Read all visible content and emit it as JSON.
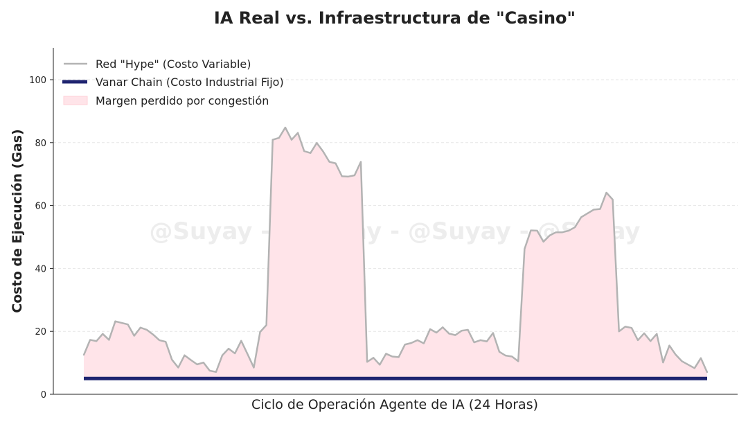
{
  "chart_data": {
    "type": "line",
    "title": "IA Real vs. Infraestructura de \"Casino\"",
    "xlabel": "Ciclo de Operación Agente de IA (24 Horas)",
    "ylabel": "Costo de Ejecución (Gas)",
    "ylim": [
      0,
      110
    ],
    "yticks": [
      0,
      20,
      40,
      60,
      80,
      100
    ],
    "grid": "horizontal-dashed",
    "legend_position": "top-left",
    "watermark": "@Suyay - @Suyay - @Suyay - @Suyay",
    "x": [
      0,
      1,
      2,
      3,
      4,
      5,
      6,
      7,
      8,
      9,
      10,
      11,
      12,
      13,
      14,
      15,
      16,
      17,
      18,
      19,
      20,
      21,
      22,
      23,
      24,
      25,
      26,
      27,
      28,
      29,
      30,
      31,
      32,
      33,
      34,
      35,
      36,
      37,
      38,
      39,
      40,
      41,
      42,
      43,
      44,
      45,
      46,
      47,
      48,
      49,
      50,
      51,
      52,
      53,
      54,
      55,
      56,
      57,
      58,
      59,
      60,
      61,
      62,
      63,
      64,
      65,
      66,
      67,
      68,
      69,
      70,
      71,
      72,
      73,
      74,
      75,
      76,
      77,
      78,
      79,
      80,
      81,
      82,
      83,
      84,
      85,
      86,
      87,
      88,
      89,
      90,
      91,
      92,
      93,
      94,
      95,
      96,
      97,
      98,
      99
    ],
    "series": [
      {
        "name": "Red \"Hype\" (Costo Variable)",
        "color": "#b3b3b3",
        "values": [
          12.5,
          17.3,
          16.9,
          19.2,
          17.3,
          23.2,
          22.7,
          22.2,
          18.6,
          21.2,
          20.5,
          19.0,
          17.2,
          16.7,
          11.0,
          8.5,
          12.4,
          10.9,
          9.5,
          10.1,
          7.5,
          7.1,
          12.4,
          14.5,
          13.0,
          17.0,
          12.8,
          8.5,
          19.8,
          22.0,
          80.9,
          81.5,
          84.8,
          80.9,
          83.1,
          77.3,
          76.7,
          79.9,
          77.2,
          73.9,
          73.4,
          69.3,
          69.2,
          69.6,
          73.9,
          10.3,
          11.6,
          9.4,
          12.9,
          12.0,
          11.8,
          15.8,
          16.3,
          17.2,
          16.2,
          20.7,
          19.6,
          21.3,
          19.3,
          18.8,
          20.2,
          20.5,
          16.5,
          17.2,
          16.8,
          19.5,
          13.5,
          12.3,
          12.0,
          10.5,
          46.2,
          52.1,
          52.0,
          48.5,
          50.5,
          51.5,
          51.5,
          52.0,
          53.1,
          56.3,
          57.5,
          58.7,
          58.9,
          64.1,
          61.9,
          20.0,
          21.5,
          21.1,
          17.2,
          19.4,
          16.9,
          19.2,
          10.1,
          15.5,
          12.6,
          10.5,
          9.4,
          8.3,
          11.5,
          7.0
        ]
      },
      {
        "name": "Vanar Chain (Costo Industrial Fijo)",
        "color": "#1f2470",
        "values": [
          5,
          5,
          5,
          5,
          5,
          5,
          5,
          5,
          5,
          5,
          5,
          5,
          5,
          5,
          5,
          5,
          5,
          5,
          5,
          5,
          5,
          5,
          5,
          5,
          5,
          5,
          5,
          5,
          5,
          5,
          5,
          5,
          5,
          5,
          5,
          5,
          5,
          5,
          5,
          5,
          5,
          5,
          5,
          5,
          5,
          5,
          5,
          5,
          5,
          5,
          5,
          5,
          5,
          5,
          5,
          5,
          5,
          5,
          5,
          5,
          5,
          5,
          5,
          5,
          5,
          5,
          5,
          5,
          5,
          5,
          5,
          5,
          5,
          5,
          5,
          5,
          5,
          5,
          5,
          5,
          5,
          5,
          5,
          5,
          5,
          5,
          5,
          5,
          5,
          5,
          5,
          5,
          5,
          5,
          5,
          5,
          5,
          5,
          5,
          5
        ]
      }
    ],
    "fill_between": {
      "name": "Margen perdido por congestión",
      "color": "#ffe4e9"
    }
  }
}
